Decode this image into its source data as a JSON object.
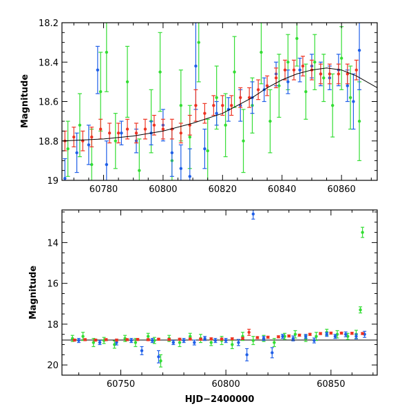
{
  "chart_data": [
    {
      "type": "scatter",
      "panel": "top",
      "xlabel": "",
      "ylabel": "Magnitude",
      "xlim": [
        60766,
        60872
      ],
      "ylim": [
        19.0,
        18.2
      ],
      "y_inverted": true,
      "x_ticks": [
        60780,
        60800,
        60820,
        60840,
        60860
      ],
      "y_ticks": [
        18.2,
        18.4,
        18.6,
        18.8,
        19
      ],
      "y_tick_labels": [
        "18.2",
        "18.4",
        "18.6",
        "18.8",
        "19"
      ],
      "grid": false,
      "error_bars": true,
      "series": [
        {
          "color": "#33dd33",
          "points": [
            [
              60768,
              18.84,
              0.14
            ],
            [
              60772,
              18.72,
              0.16
            ],
            [
              60776,
              18.92,
              0.18
            ],
            [
              60779,
              18.55,
              0.2
            ],
            [
              60781,
              18.35,
              0.2
            ],
            [
              60784,
              18.8,
              0.14
            ],
            [
              60788,
              18.5,
              0.18
            ],
            [
              60792,
              18.95,
              0.16
            ],
            [
              60796,
              18.7,
              0.16
            ],
            [
              60799,
              18.45,
              0.2
            ],
            [
              60803,
              18.9,
              0.16
            ],
            [
              60806,
              18.62,
              0.18
            ],
            [
              60809,
              18.78,
              0.16
            ],
            [
              60812,
              18.3,
              0.2
            ],
            [
              60815,
              18.85,
              0.16
            ],
            [
              60818,
              18.58,
              0.16
            ],
            [
              60821,
              18.72,
              0.16
            ],
            [
              60824,
              18.45,
              0.18
            ],
            [
              60827,
              18.8,
              0.16
            ],
            [
              60830,
              18.62,
              0.14
            ],
            [
              60833,
              18.35,
              0.16
            ],
            [
              60836,
              18.7,
              0.16
            ],
            [
              60839,
              18.52,
              0.16
            ],
            [
              60842,
              18.4,
              0.14
            ],
            [
              60845,
              18.28,
              0.14
            ],
            [
              60848,
              18.55,
              0.14
            ],
            [
              60851,
              18.4,
              0.14
            ],
            [
              60854,
              18.48,
              0.12
            ],
            [
              60857,
              18.62,
              0.16
            ],
            [
              60860,
              18.38,
              0.16
            ],
            [
              60863,
              18.58,
              0.16
            ],
            [
              60866,
              18.7,
              0.2
            ]
          ]
        },
        {
          "color": "#1f5fe8",
          "points": [
            [
              60767,
              18.99,
              0.1
            ],
            [
              60771,
              18.86,
              0.1
            ],
            [
              60775,
              18.82,
              0.1
            ],
            [
              60778,
              18.44,
              0.12
            ],
            [
              60781,
              18.92,
              0.12
            ],
            [
              60786,
              18.76,
              0.06
            ],
            [
              60791,
              18.8,
              0.06
            ],
            [
              60796,
              18.76,
              0.06
            ],
            [
              60800,
              18.72,
              0.08
            ],
            [
              60803,
              18.86,
              0.12
            ],
            [
              60806,
              18.94,
              0.12
            ],
            [
              60809,
              18.98,
              0.14
            ],
            [
              60811,
              18.42,
              0.22
            ],
            [
              60814,
              18.84,
              0.1
            ],
            [
              60818,
              18.66,
              0.06
            ],
            [
              60822,
              18.64,
              0.06
            ],
            [
              60826,
              18.62,
              0.08
            ],
            [
              60830,
              18.58,
              0.08
            ],
            [
              60834,
              18.54,
              0.06
            ],
            [
              60838,
              18.46,
              0.06
            ],
            [
              60842,
              18.5,
              0.06
            ],
            [
              60846,
              18.44,
              0.06
            ],
            [
              60850,
              18.42,
              0.06
            ],
            [
              60853,
              18.46,
              0.06
            ],
            [
              60856,
              18.48,
              0.06
            ],
            [
              60859,
              18.44,
              0.08
            ],
            [
              60862,
              18.52,
              0.08
            ],
            [
              60864,
              18.6,
              0.14
            ],
            [
              60866,
              18.34,
              0.2
            ]
          ]
        },
        {
          "color": "#ee3322",
          "points": [
            [
              60767,
              18.8,
              0.05
            ],
            [
              60770,
              18.78,
              0.05
            ],
            [
              60773,
              18.8,
              0.05
            ],
            [
              60776,
              18.78,
              0.05
            ],
            [
              60779,
              18.74,
              0.05
            ],
            [
              60782,
              18.76,
              0.05
            ],
            [
              60785,
              18.76,
              0.05
            ],
            [
              60788,
              18.74,
              0.05
            ],
            [
              60791,
              18.76,
              0.05
            ],
            [
              60794,
              18.74,
              0.05
            ],
            [
              60797,
              18.72,
              0.05
            ],
            [
              60800,
              18.74,
              0.05
            ],
            [
              60803,
              18.74,
              0.05
            ],
            [
              60806,
              18.76,
              0.05
            ],
            [
              60809,
              18.72,
              0.05
            ],
            [
              60811,
              18.62,
              0.08
            ],
            [
              60814,
              18.66,
              0.05
            ],
            [
              60817,
              18.62,
              0.05
            ],
            [
              60820,
              18.62,
              0.05
            ],
            [
              60823,
              18.62,
              0.05
            ],
            [
              60826,
              18.58,
              0.05
            ],
            [
              60829,
              18.58,
              0.05
            ],
            [
              60832,
              18.54,
              0.05
            ],
            [
              60835,
              18.52,
              0.05
            ],
            [
              60838,
              18.48,
              0.05
            ],
            [
              60841,
              18.44,
              0.05
            ],
            [
              60844,
              18.44,
              0.05
            ],
            [
              60847,
              18.42,
              0.05
            ],
            [
              60850,
              18.44,
              0.05
            ],
            [
              60853,
              18.46,
              0.05
            ],
            [
              60856,
              18.46,
              0.05
            ],
            [
              60859,
              18.46,
              0.05
            ],
            [
              60862,
              18.46,
              0.05
            ],
            [
              60865,
              18.44,
              0.05
            ]
          ]
        }
      ],
      "model_curve": {
        "color": "#000000",
        "points": [
          [
            60766,
            18.8
          ],
          [
            60780,
            18.79
          ],
          [
            60790,
            18.775
          ],
          [
            60800,
            18.75
          ],
          [
            60810,
            18.71
          ],
          [
            60820,
            18.66
          ],
          [
            60830,
            18.58
          ],
          [
            60835,
            18.53
          ],
          [
            60840,
            18.49
          ],
          [
            60845,
            18.46
          ],
          [
            60850,
            18.44
          ],
          [
            60855,
            18.43
          ],
          [
            60860,
            18.44
          ],
          [
            60865,
            18.47
          ],
          [
            60872,
            18.53
          ]
        ]
      }
    },
    {
      "type": "scatter",
      "panel": "bottom",
      "xlabel": "HJD−2400000",
      "ylabel": "Magnitude",
      "xlim": [
        60722,
        60872
      ],
      "ylim": [
        20.5,
        12.4
      ],
      "y_inverted": true,
      "x_ticks": [
        60750,
        60800,
        60850
      ],
      "y_ticks": [
        14,
        16,
        18,
        20
      ],
      "y_tick_labels": [
        "14",
        "16",
        "18",
        "20"
      ],
      "grid": false,
      "error_bars": true,
      "reference_line": {
        "y": 18.78,
        "color": "#000000"
      },
      "series": [
        {
          "color": "#33dd33",
          "points": [
            [
              60727,
              18.7,
              0.15
            ],
            [
              60732,
              18.6,
              0.2
            ],
            [
              60737,
              18.9,
              0.2
            ],
            [
              60742,
              18.8,
              0.15
            ],
            [
              60747,
              19.0,
              0.18
            ],
            [
              60752,
              18.7,
              0.15
            ],
            [
              60757,
              18.9,
              0.2
            ],
            [
              60763,
              18.6,
              0.15
            ],
            [
              60766,
              18.8,
              0.15
            ],
            [
              60769,
              19.8,
              0.3
            ],
            [
              60773,
              18.7,
              0.15
            ],
            [
              60778,
              18.9,
              0.2
            ],
            [
              60783,
              18.6,
              0.15
            ],
            [
              60788,
              18.7,
              0.2
            ],
            [
              60793,
              18.9,
              0.15
            ],
            [
              60798,
              18.8,
              0.2
            ],
            [
              60803,
              19.0,
              0.2
            ],
            [
              60808,
              18.6,
              0.2
            ],
            [
              60813,
              18.8,
              0.2
            ],
            [
              60818,
              18.7,
              0.15
            ],
            [
              60823,
              18.9,
              0.2
            ],
            [
              60828,
              18.6,
              0.15
            ],
            [
              60833,
              18.5,
              0.18
            ],
            [
              60838,
              18.7,
              0.15
            ],
            [
              60843,
              18.6,
              0.2
            ],
            [
              60848,
              18.4,
              0.15
            ],
            [
              60853,
              18.5,
              0.18
            ],
            [
              60858,
              18.6,
              0.15
            ],
            [
              60862,
              18.5,
              0.2
            ],
            [
              60864,
              17.3,
              0.15
            ],
            [
              60865,
              13.5,
              0.25
            ]
          ]
        },
        {
          "color": "#1f5fe8",
          "points": [
            [
              60730,
              18.8,
              0.1
            ],
            [
              60740,
              18.9,
              0.1
            ],
            [
              60748,
              18.9,
              0.12
            ],
            [
              60755,
              18.8,
              0.1
            ],
            [
              60760,
              19.3,
              0.2
            ],
            [
              60765,
              18.8,
              0.1
            ],
            [
              60768,
              19.6,
              0.3
            ],
            [
              60775,
              18.9,
              0.1
            ],
            [
              60780,
              18.8,
              0.1
            ],
            [
              60785,
              18.9,
              0.12
            ],
            [
              60790,
              18.7,
              0.1
            ],
            [
              60795,
              18.8,
              0.1
            ],
            [
              60800,
              18.8,
              0.1
            ],
            [
              60806,
              18.9,
              0.15
            ],
            [
              60810,
              19.5,
              0.3
            ],
            [
              60813,
              12.6,
              0.25
            ],
            [
              60818,
              18.7,
              0.1
            ],
            [
              60822,
              19.4,
              0.25
            ],
            [
              60827,
              18.6,
              0.1
            ],
            [
              60832,
              18.7,
              0.12
            ],
            [
              60838,
              18.6,
              0.1
            ],
            [
              60842,
              18.8,
              0.12
            ],
            [
              60848,
              18.5,
              0.1
            ],
            [
              60852,
              18.6,
              0.1
            ],
            [
              60857,
              18.5,
              0.12
            ],
            [
              60862,
              18.6,
              0.12
            ],
            [
              60866,
              18.5,
              0.15
            ]
          ]
        },
        {
          "color": "#ee3322",
          "points": [
            [
              60728,
              18.78,
              0.05
            ],
            [
              60733,
              18.76,
              0.05
            ],
            [
              60738,
              18.78,
              0.05
            ],
            [
              60743,
              18.76,
              0.05
            ],
            [
              60748,
              18.78,
              0.05
            ],
            [
              60753,
              18.76,
              0.05
            ],
            [
              60758,
              18.75,
              0.05
            ],
            [
              60763,
              18.76,
              0.05
            ],
            [
              60768,
              18.74,
              0.05
            ],
            [
              60773,
              18.75,
              0.05
            ],
            [
              60778,
              18.74,
              0.05
            ],
            [
              60783,
              18.73,
              0.05
            ],
            [
              60788,
              18.74,
              0.05
            ],
            [
              60793,
              18.72,
              0.05
            ],
            [
              60798,
              18.73,
              0.05
            ],
            [
              60803,
              18.72,
              0.05
            ],
            [
              60808,
              18.7,
              0.05
            ],
            [
              60811,
              18.4,
              0.15
            ],
            [
              60815,
              18.66,
              0.05
            ],
            [
              60820,
              18.64,
              0.05
            ],
            [
              60825,
              18.62,
              0.05
            ],
            [
              60830,
              18.58,
              0.05
            ],
            [
              60835,
              18.54,
              0.05
            ],
            [
              60840,
              18.5,
              0.05
            ],
            [
              60845,
              18.46,
              0.05
            ],
            [
              60850,
              18.44,
              0.05
            ],
            [
              60855,
              18.44,
              0.05
            ],
            [
              60860,
              18.45,
              0.05
            ],
            [
              60865,
              18.46,
              0.05
            ]
          ]
        }
      ]
    }
  ]
}
